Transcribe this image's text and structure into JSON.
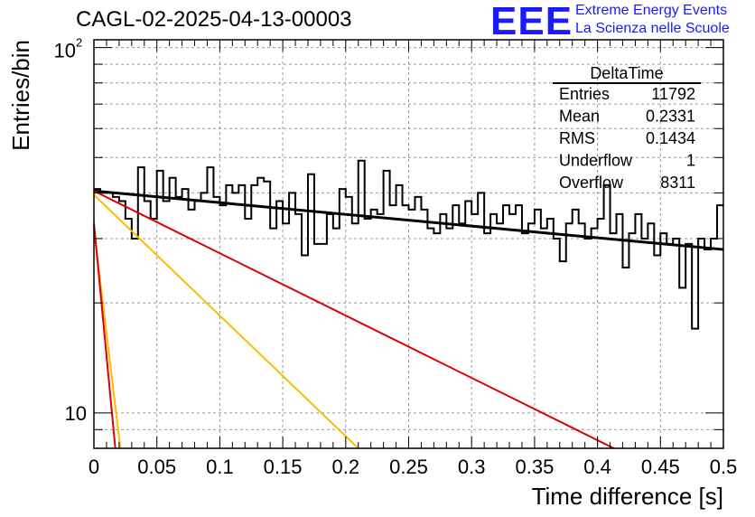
{
  "chart_data": {
    "type": "histogram",
    "title": "CAGL-02-2025-04-13-00003",
    "xlabel": "Time difference [s]",
    "ylabel": "Entries/bin",
    "xlim": [
      0,
      0.5
    ],
    "ylim": [
      8,
      105
    ],
    "yscale": "log",
    "grid": true,
    "x_ticks": [
      "0",
      "0.05",
      "0.1",
      "0.15",
      "0.2",
      "0.25",
      "0.3",
      "0.35",
      "0.4",
      "0.45",
      "0.5"
    ],
    "y_ticks": [
      "10",
      "10^2"
    ],
    "bin_width": 0.005,
    "bin_values": [
      41,
      40,
      40,
      39,
      38,
      34,
      30,
      47,
      38,
      34,
      46,
      38,
      44,
      39,
      41,
      36,
      38,
      40,
      47,
      39,
      37,
      42,
      40,
      42,
      34,
      42,
      44,
      43,
      32,
      38,
      33,
      40,
      35,
      27,
      45,
      29,
      29,
      35,
      32,
      41,
      39,
      33,
      49,
      34,
      36,
      35,
      46,
      37,
      42,
      37,
      36,
      39,
      36,
      32,
      31,
      35,
      32,
      37,
      33,
      38,
      35,
      40,
      31,
      35,
      33,
      37,
      35,
      37,
      31,
      33,
      36,
      32,
      34,
      30,
      26,
      33,
      36,
      33,
      30,
      32,
      34,
      42,
      31,
      35,
      25,
      31,
      35,
      30,
      33,
      27,
      31,
      29,
      30,
      22,
      29,
      17,
      30,
      28,
      30,
      37
    ],
    "fits": [
      {
        "color": "#000000",
        "points": [
          [
            0.0,
            40.5
          ],
          [
            0.5,
            28.0
          ]
        ]
      },
      {
        "color": "#dd0000",
        "points": [
          [
            0.0,
            40.5
          ],
          [
            0.413,
            8.0
          ]
        ]
      },
      {
        "color": "#ffbb00",
        "points": [
          [
            0.0,
            39.5
          ],
          [
            0.21,
            8.0
          ]
        ]
      },
      {
        "color": "#ffbb00",
        "points": [
          [
            0.0,
            32.0
          ],
          [
            0.021,
            8.0
          ]
        ]
      },
      {
        "color": "#dd0000",
        "points": [
          [
            0.0,
            33.0
          ],
          [
            0.017,
            8.0
          ]
        ]
      }
    ],
    "stats_box": {
      "name": "DeltaTime",
      "rows": [
        {
          "label": "Entries",
          "value": "11792"
        },
        {
          "label": "Mean",
          "value": "0.2331"
        },
        {
          "label": "RMS",
          "value": "0.1434"
        },
        {
          "label": "Underflow",
          "value": "1"
        },
        {
          "label": "Overflow",
          "value": "8311"
        }
      ]
    }
  },
  "logo": {
    "mark": "EEE",
    "line1": "Extreme Energy Events",
    "line2": "La Scienza nelle Scuole"
  }
}
